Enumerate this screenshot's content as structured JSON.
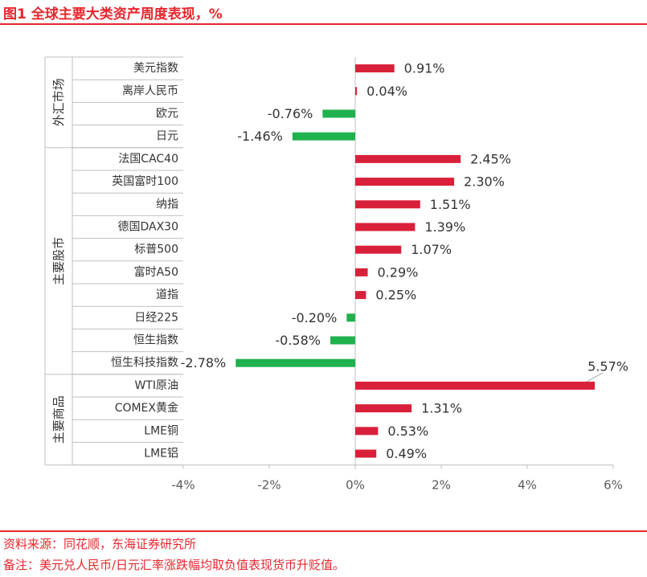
{
  "header": {
    "title": "图1  全球主要大类资产周度表现，%"
  },
  "footer": {
    "source": "资料来源：同花顺，东海证券研究所",
    "note": "备注：美元兑人民币/日元汇率涨跌幅均取负值表现货币升贬值。"
  },
  "colors": {
    "positive": "#d9203a",
    "negative": "#1fb14d",
    "accent": "#e8262d",
    "axis": "#bfbfbf",
    "text": "#333333"
  },
  "chart_data": {
    "type": "bar",
    "orientation": "horizontal",
    "title": "",
    "xlabel": "",
    "ylabel": "",
    "xlim": [
      -4,
      6
    ],
    "x_ticks": [
      -4,
      -2,
      0,
      2,
      4,
      6
    ],
    "x_tick_labels": [
      "-4%",
      "-2%",
      "0%",
      "2%",
      "4%",
      "6%"
    ],
    "grid": false,
    "groups": [
      {
        "name": "外汇市场",
        "start": 0,
        "end": 3
      },
      {
        "name": "主要股市",
        "start": 4,
        "end": 13
      },
      {
        "name": "主要商品",
        "start": 14,
        "end": 17
      }
    ],
    "categories": [
      "美元指数",
      "离岸人民币",
      "欧元",
      "日元",
      "法国CAC40",
      "英国富时100",
      "纳指",
      "德国DAX30",
      "标普500",
      "富时A50",
      "道指",
      "日经225",
      "恒生指数",
      "恒生科技指数",
      "WTI原油",
      "COMEX黄金",
      "LME铜",
      "LME铝"
    ],
    "values": [
      0.91,
      0.04,
      -0.76,
      -1.46,
      2.45,
      2.3,
      1.51,
      1.39,
      1.07,
      0.29,
      0.25,
      -0.2,
      -0.58,
      -2.78,
      5.57,
      1.31,
      0.53,
      0.49
    ],
    "value_labels": [
      "0.91%",
      "0.04%",
      "-0.76%",
      "-1.46%",
      "2.45%",
      "2.30%",
      "1.51%",
      "1.39%",
      "1.07%",
      "0.29%",
      "0.25%",
      "-0.20%",
      "-0.58%",
      "-2.78%",
      "5.57%",
      "1.31%",
      "0.53%",
      "0.49%"
    ]
  }
}
